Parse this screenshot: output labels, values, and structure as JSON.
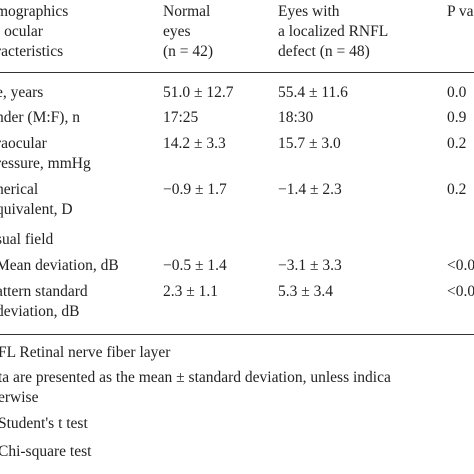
{
  "table": {
    "header": [
      [
        "mographics",
        "l ocular",
        "racteristics"
      ],
      [
        "Normal",
        "eyes",
        "(n = 42)"
      ],
      [
        "Eyes with",
        "a localized RNFL",
        "defect (n = 48)"
      ],
      [
        "P va"
      ]
    ],
    "rows": [
      {
        "label": [
          "e, years"
        ],
        "cells": [
          "51.0 ± 12.7",
          "55.4 ± 11.6",
          "0.0"
        ]
      },
      {
        "label": [
          "nder (M:F), n"
        ],
        "cells": [
          "17:25",
          "18:30",
          "0.9"
        ]
      },
      {
        "label": [
          "raocular",
          "ressure, mmHg"
        ],
        "cells": [
          "14.2 ± 3.3",
          "15.7 ± 3.0",
          "0.2"
        ]
      },
      {
        "label": [
          "herical",
          "quivalent, D"
        ],
        "cells": [
          "−0.9 ± 1.7",
          "−1.4 ± 2.3",
          "0.2"
        ]
      },
      {
        "label": [
          "sual field"
        ],
        "cells": []
      },
      {
        "label": [
          "Mean deviation, dB"
        ],
        "cells": [
          "−0.5 ± 1.4",
          "−3.1 ± 3.3",
          "<0.0"
        ]
      },
      {
        "label": [
          "attern standard",
          "deviation, dB"
        ],
        "cells": [
          "2.3 ± 1.1",
          "5.3 ± 3.4",
          "<0.0"
        ]
      }
    ],
    "footnotes": [
      [
        "FL Retinal nerve fiber layer"
      ],
      [
        "ta are presented as the mean ± standard deviation, unless indica",
        "erwise"
      ],
      [
        "Student's t test"
      ],
      [
        "Chi-square test"
      ]
    ]
  }
}
